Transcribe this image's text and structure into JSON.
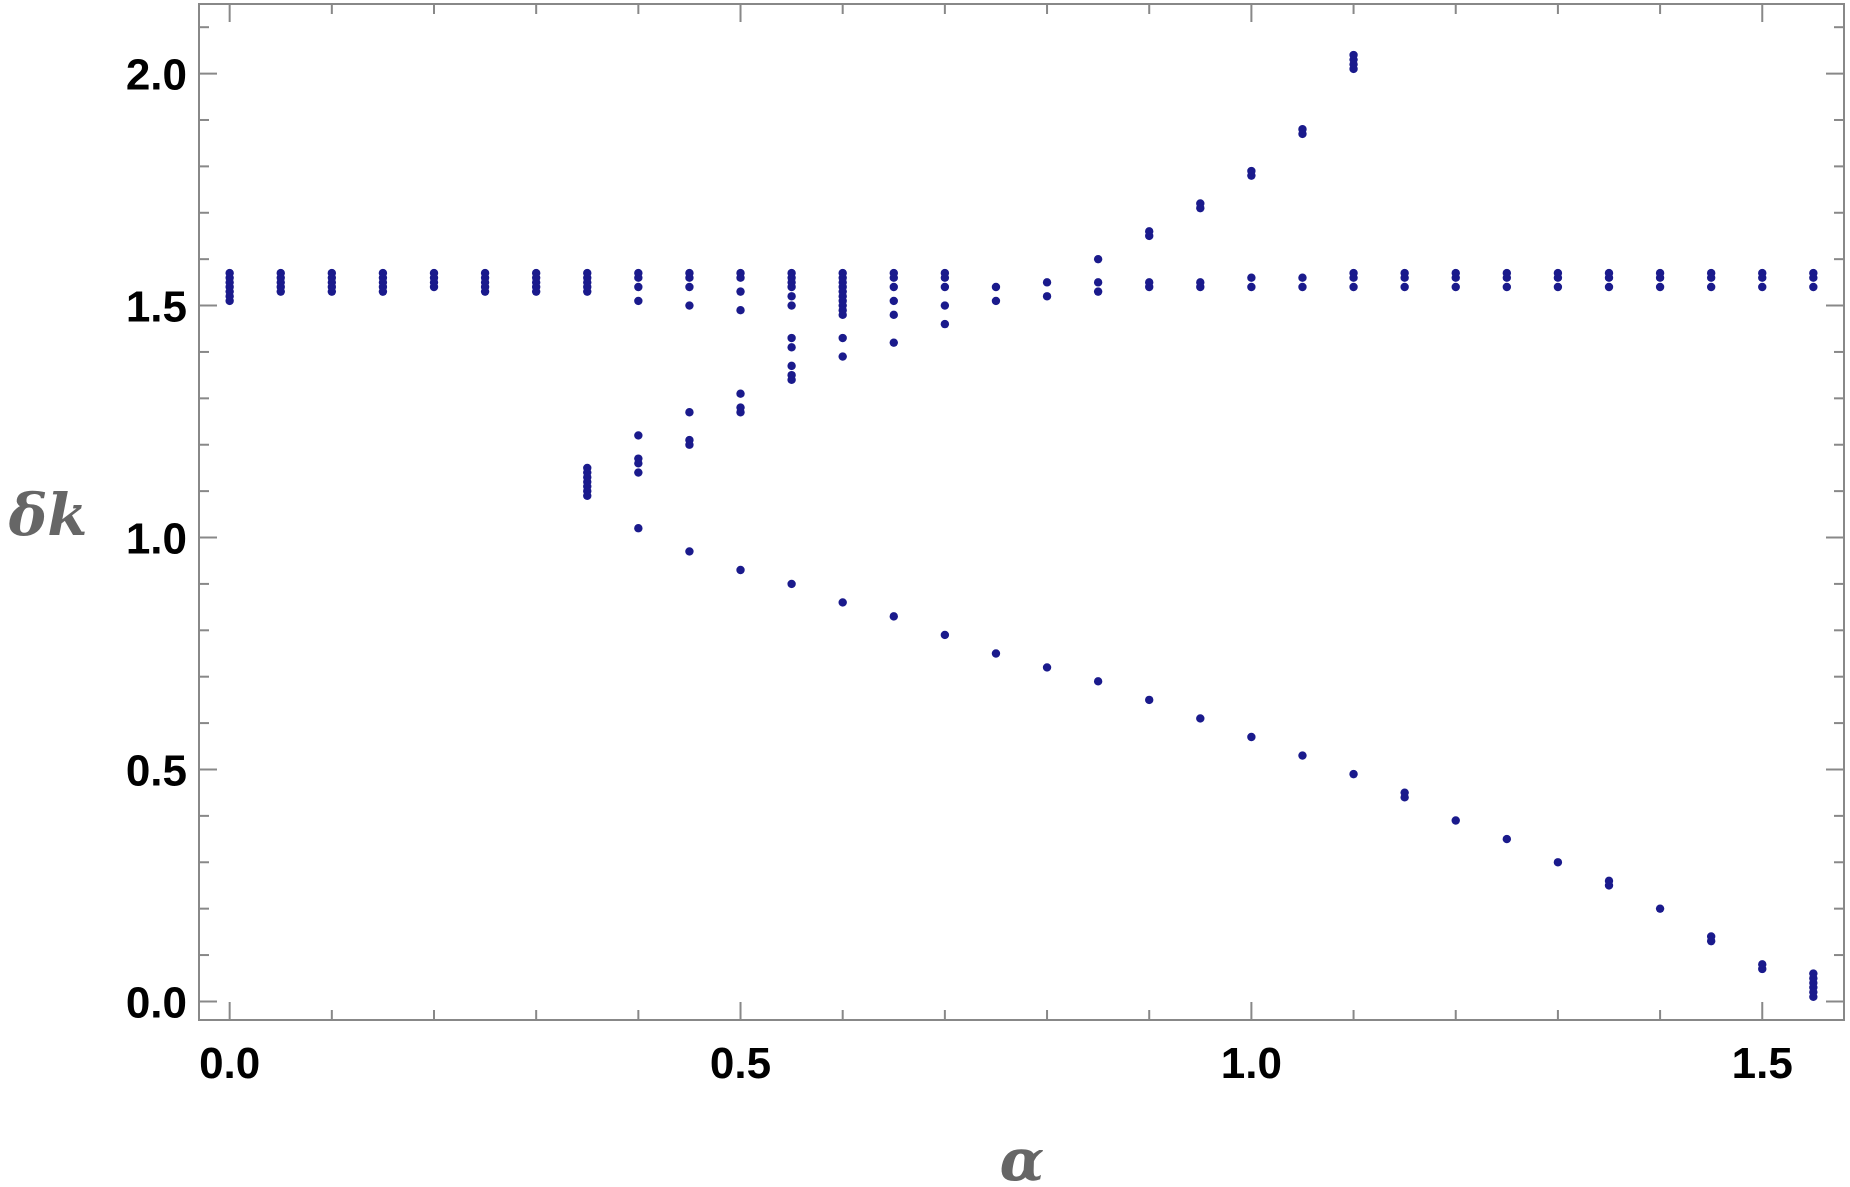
{
  "chart_data": {
    "type": "scatter",
    "xlabel": "α",
    "ylabel": "δk",
    "xlim": [
      -0.03,
      1.58
    ],
    "ylim": [
      -0.04,
      2.15
    ],
    "xticks": [
      {
        "value": 0.0,
        "label": "0.0"
      },
      {
        "value": 0.5,
        "label": "0.5"
      },
      {
        "value": 1.0,
        "label": "1.0"
      },
      {
        "value": 1.5,
        "label": "1.5"
      }
    ],
    "yticks": [
      {
        "value": 0.0,
        "label": "0.0"
      },
      {
        "value": 0.5,
        "label": "0.5"
      },
      {
        "value": 1.0,
        "label": "1.0"
      },
      {
        "value": 1.5,
        "label": "1.5"
      },
      {
        "value": 2.0,
        "label": "2.0"
      }
    ],
    "grid": false,
    "legend": "none",
    "colors": {
      "points": "#1a1a8c",
      "frame": "#888888",
      "tick_labels": "#000000",
      "axis_titles": "#666666"
    },
    "series": [
      {
        "points": [
          [
            0.0,
            1.57
          ],
          [
            0.0,
            1.56
          ],
          [
            0.0,
            1.55
          ],
          [
            0.0,
            1.54
          ],
          [
            0.0,
            1.53
          ],
          [
            0.0,
            1.52
          ],
          [
            0.0,
            1.51
          ],
          [
            0.05,
            1.57
          ],
          [
            0.05,
            1.56
          ],
          [
            0.05,
            1.55
          ],
          [
            0.05,
            1.54
          ],
          [
            0.05,
            1.53
          ],
          [
            0.1,
            1.57
          ],
          [
            0.1,
            1.56
          ],
          [
            0.1,
            1.55
          ],
          [
            0.1,
            1.54
          ],
          [
            0.1,
            1.53
          ],
          [
            0.15,
            1.57
          ],
          [
            0.15,
            1.56
          ],
          [
            0.15,
            1.55
          ],
          [
            0.15,
            1.54
          ],
          [
            0.15,
            1.53
          ],
          [
            0.2,
            1.57
          ],
          [
            0.2,
            1.56
          ],
          [
            0.2,
            1.55
          ],
          [
            0.2,
            1.54
          ],
          [
            0.25,
            1.57
          ],
          [
            0.25,
            1.56
          ],
          [
            0.25,
            1.55
          ],
          [
            0.25,
            1.54
          ],
          [
            0.25,
            1.53
          ],
          [
            0.3,
            1.57
          ],
          [
            0.3,
            1.56
          ],
          [
            0.3,
            1.55
          ],
          [
            0.3,
            1.54
          ],
          [
            0.3,
            1.53
          ],
          [
            0.35,
            1.57
          ],
          [
            0.35,
            1.56
          ],
          [
            0.35,
            1.55
          ],
          [
            0.35,
            1.54
          ],
          [
            0.35,
            1.53
          ],
          [
            0.35,
            1.15
          ],
          [
            0.35,
            1.14
          ],
          [
            0.35,
            1.13
          ],
          [
            0.35,
            1.12
          ],
          [
            0.35,
            1.11
          ],
          [
            0.35,
            1.1
          ],
          [
            0.35,
            1.09
          ],
          [
            0.4,
            1.57
          ],
          [
            0.4,
            1.56
          ],
          [
            0.4,
            1.54
          ],
          [
            0.4,
            1.51
          ],
          [
            0.4,
            1.22
          ],
          [
            0.4,
            1.17
          ],
          [
            0.4,
            1.16
          ],
          [
            0.4,
            1.14
          ],
          [
            0.4,
            1.02
          ],
          [
            0.45,
            1.57
          ],
          [
            0.45,
            1.56
          ],
          [
            0.45,
            1.54
          ],
          [
            0.45,
            1.5
          ],
          [
            0.45,
            1.27
          ],
          [
            0.45,
            1.21
          ],
          [
            0.45,
            1.2
          ],
          [
            0.45,
            0.97
          ],
          [
            0.5,
            1.57
          ],
          [
            0.5,
            1.56
          ],
          [
            0.5,
            1.53
          ],
          [
            0.5,
            1.49
          ],
          [
            0.5,
            1.31
          ],
          [
            0.5,
            1.28
          ],
          [
            0.5,
            1.27
          ],
          [
            0.5,
            0.93
          ],
          [
            0.55,
            1.57
          ],
          [
            0.55,
            1.56
          ],
          [
            0.55,
            1.55
          ],
          [
            0.55,
            1.54
          ],
          [
            0.55,
            1.52
          ],
          [
            0.55,
            1.5
          ],
          [
            0.55,
            1.43
          ],
          [
            0.55,
            1.41
          ],
          [
            0.55,
            1.37
          ],
          [
            0.55,
            1.35
          ],
          [
            0.55,
            1.34
          ],
          [
            0.55,
            0.9
          ],
          [
            0.6,
            1.57
          ],
          [
            0.6,
            1.56
          ],
          [
            0.6,
            1.55
          ],
          [
            0.6,
            1.54
          ],
          [
            0.6,
            1.53
          ],
          [
            0.6,
            1.52
          ],
          [
            0.6,
            1.51
          ],
          [
            0.6,
            1.5
          ],
          [
            0.6,
            1.49
          ],
          [
            0.6,
            1.48
          ],
          [
            0.6,
            1.43
          ],
          [
            0.6,
            1.39
          ],
          [
            0.6,
            0.86
          ],
          [
            0.65,
            1.57
          ],
          [
            0.65,
            1.56
          ],
          [
            0.65,
            1.54
          ],
          [
            0.65,
            1.51
          ],
          [
            0.65,
            1.48
          ],
          [
            0.65,
            1.42
          ],
          [
            0.65,
            0.83
          ],
          [
            0.7,
            1.57
          ],
          [
            0.7,
            1.56
          ],
          [
            0.7,
            1.54
          ],
          [
            0.7,
            1.5
          ],
          [
            0.7,
            1.46
          ],
          [
            0.7,
            0.79
          ],
          [
            0.75,
            1.54
          ],
          [
            0.75,
            1.51
          ],
          [
            0.75,
            0.75
          ],
          [
            0.8,
            1.55
          ],
          [
            0.8,
            1.52
          ],
          [
            0.8,
            0.72
          ],
          [
            0.85,
            1.6
          ],
          [
            0.85,
            1.55
          ],
          [
            0.85,
            1.53
          ],
          [
            0.85,
            0.69
          ],
          [
            0.9,
            1.66
          ],
          [
            0.9,
            1.65
          ],
          [
            0.9,
            1.55
          ],
          [
            0.9,
            1.54
          ],
          [
            0.9,
            0.65
          ],
          [
            0.95,
            1.72
          ],
          [
            0.95,
            1.71
          ],
          [
            0.95,
            1.55
          ],
          [
            0.95,
            1.54
          ],
          [
            0.95,
            0.61
          ],
          [
            1.0,
            1.79
          ],
          [
            1.0,
            1.78
          ],
          [
            1.0,
            1.56
          ],
          [
            1.0,
            1.54
          ],
          [
            1.0,
            0.57
          ],
          [
            1.05,
            1.88
          ],
          [
            1.05,
            1.87
          ],
          [
            1.05,
            1.56
          ],
          [
            1.05,
            1.54
          ],
          [
            1.05,
            0.53
          ],
          [
            1.1,
            2.04
          ],
          [
            1.1,
            2.03
          ],
          [
            1.1,
            2.02
          ],
          [
            1.1,
            2.01
          ],
          [
            1.1,
            1.57
          ],
          [
            1.1,
            1.56
          ],
          [
            1.1,
            1.54
          ],
          [
            1.1,
            0.49
          ],
          [
            1.15,
            1.57
          ],
          [
            1.15,
            1.56
          ],
          [
            1.15,
            1.54
          ],
          [
            1.15,
            0.45
          ],
          [
            1.15,
            0.44
          ],
          [
            1.2,
            1.57
          ],
          [
            1.2,
            1.56
          ],
          [
            1.2,
            1.54
          ],
          [
            1.2,
            0.39
          ],
          [
            1.25,
            1.57
          ],
          [
            1.25,
            1.56
          ],
          [
            1.25,
            1.54
          ],
          [
            1.25,
            0.35
          ],
          [
            1.3,
            1.57
          ],
          [
            1.3,
            1.56
          ],
          [
            1.3,
            1.54
          ],
          [
            1.3,
            0.3
          ],
          [
            1.35,
            1.57
          ],
          [
            1.35,
            1.56
          ],
          [
            1.35,
            1.54
          ],
          [
            1.35,
            0.26
          ],
          [
            1.35,
            0.25
          ],
          [
            1.4,
            1.57
          ],
          [
            1.4,
            1.56
          ],
          [
            1.4,
            1.54
          ],
          [
            1.4,
            0.2
          ],
          [
            1.45,
            1.57
          ],
          [
            1.45,
            1.56
          ],
          [
            1.45,
            1.54
          ],
          [
            1.45,
            0.14
          ],
          [
            1.45,
            0.13
          ],
          [
            1.5,
            1.57
          ],
          [
            1.5,
            1.56
          ],
          [
            1.5,
            1.54
          ],
          [
            1.5,
            0.08
          ],
          [
            1.5,
            0.07
          ],
          [
            1.55,
            1.57
          ],
          [
            1.55,
            1.56
          ],
          [
            1.55,
            1.54
          ],
          [
            1.55,
            0.06
          ],
          [
            1.55,
            0.05
          ],
          [
            1.55,
            0.04
          ],
          [
            1.55,
            0.03
          ],
          [
            1.55,
            0.02
          ],
          [
            1.55,
            0.01
          ]
        ]
      }
    ]
  }
}
